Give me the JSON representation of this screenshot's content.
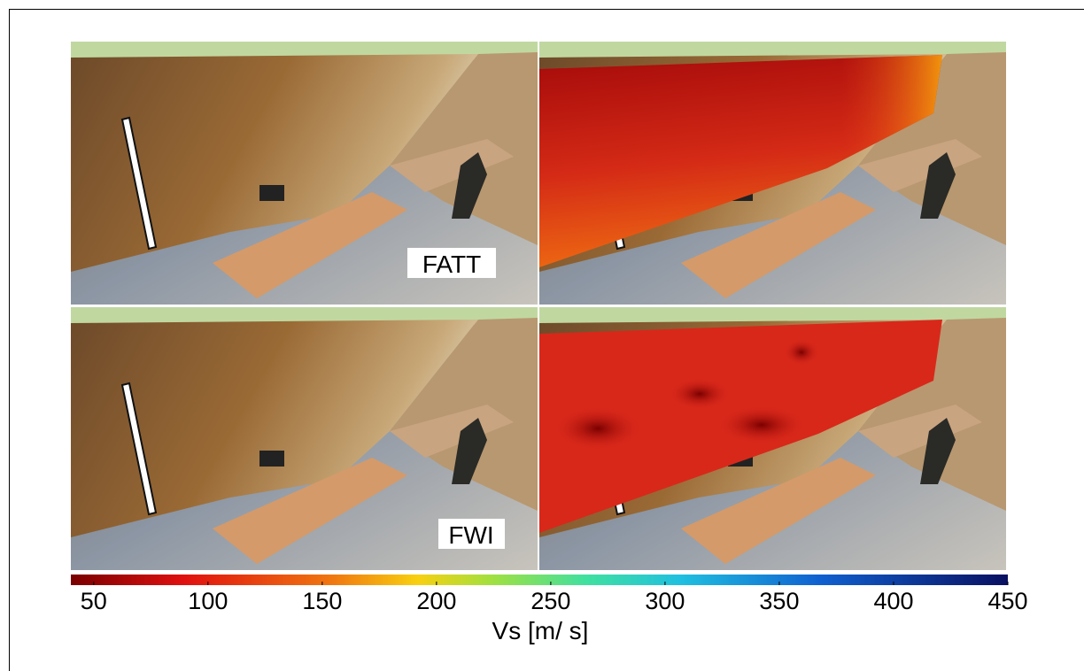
{
  "panels": [
    {
      "label": "FATT"
    },
    {
      "label": "FWI"
    }
  ],
  "colorbar": {
    "label": "Vs [m/ s]",
    "lim": [
      40,
      450
    ],
    "ticks": [
      50,
      100,
      150,
      200,
      250,
      300,
      350,
      400,
      450
    ]
  }
}
